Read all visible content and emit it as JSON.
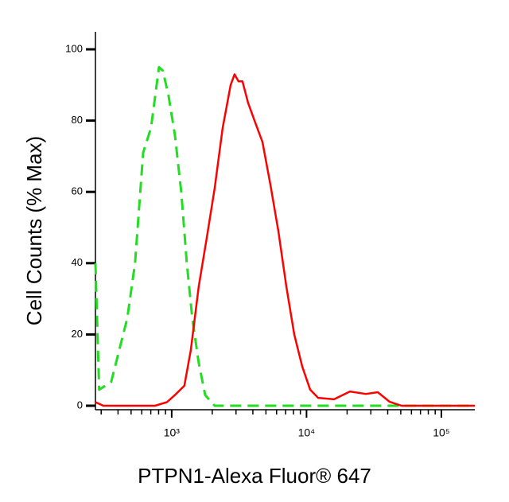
{
  "chart_data": {
    "type": "line",
    "xlabel": "PTPN1-Alexa Fluor® 647",
    "ylabel": "Cell Counts (% Max)",
    "xscale": "log",
    "xlim": [
      272,
      177000
    ],
    "ylim": [
      0,
      100
    ],
    "xticks": [
      {
        "value": 1000,
        "label": "10³"
      },
      {
        "value": 10000,
        "label": "10⁴"
      },
      {
        "value": 100000,
        "label": "10⁵"
      }
    ],
    "xminor_ticks": [
      300,
      400,
      500,
      600,
      700,
      800,
      900,
      2000,
      3000,
      4000,
      5000,
      6000,
      7000,
      8000,
      9000,
      20000,
      30000,
      40000,
      50000,
      60000,
      70000,
      80000,
      90000
    ],
    "yticks": [
      0,
      20,
      40,
      60,
      80,
      100
    ],
    "series": [
      {
        "color": "#22dd22",
        "dashed": true,
        "x": [
          272,
          290,
          356,
          408,
          468,
          535,
          614,
          703,
          805,
          861,
          947,
          1056,
          1178,
          1295,
          1423,
          1588,
          1771,
          2084,
          12190,
          177000
        ],
        "values": [
          40,
          4.5,
          6.7,
          15.6,
          24.5,
          40,
          71,
          78,
          95,
          94,
          87,
          76,
          60,
          40,
          24.5,
          12,
          3,
          0,
          0,
          0
        ]
      },
      {
        "color": "#ff0000",
        "dashed": false,
        "x": [
          272,
          311,
          752,
          922,
          1056,
          1242,
          1386,
          1588,
          1818,
          2084,
          2388,
          2735,
          2926,
          3131,
          3350,
          3684,
          4111,
          4711,
          5397,
          6182,
          7083,
          8113,
          9295,
          10650,
          12190,
          15990,
          20990,
          27540,
          33760,
          41410,
          50690,
          177000
        ],
        "values": [
          1,
          0,
          0,
          1,
          3,
          5.6,
          15.6,
          33.5,
          47,
          61,
          78,
          90,
          93,
          91,
          91,
          85,
          80,
          74,
          62,
          49,
          33.5,
          20,
          11,
          4.5,
          2.2,
          1.8,
          4,
          3.3,
          3.8,
          1.1,
          0,
          0
        ]
      }
    ]
  }
}
